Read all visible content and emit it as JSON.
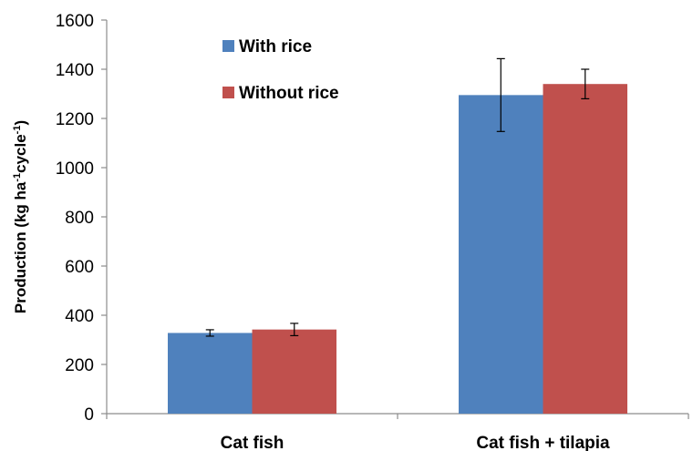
{
  "chart_data": {
    "type": "bar",
    "categories": [
      "Cat fish",
      "Cat fish + tilapia"
    ],
    "series": [
      {
        "name": "With rice",
        "color": "#4F81BD",
        "values": [
          328,
          1295
        ],
        "error": [
          13,
          148
        ]
      },
      {
        "name": "Without rice",
        "color": "#C0504D",
        "values": [
          342,
          1340
        ],
        "error": [
          25,
          60
        ]
      }
    ],
    "ylabel": "Production  (kg ha-1cycle-1)",
    "ylabel_parts": {
      "main": "Production  (kg ha",
      "exp1": "-1",
      "mid": "cycle",
      "exp2": "-1",
      "end": ")"
    },
    "ylim": [
      0,
      1600
    ],
    "yticks": [
      0,
      200,
      400,
      600,
      800,
      1000,
      1200,
      1400,
      1600
    ],
    "legend_position": "top-left",
    "grid": false
  }
}
